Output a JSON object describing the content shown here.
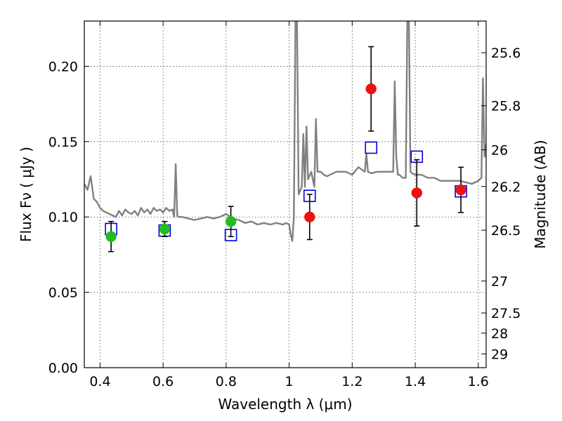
{
  "chart_data": {
    "type": "scatter",
    "title": "",
    "xlabel": "Wavelength  λ (μm)",
    "ylabel": "Flux  Fν  ( μJy )",
    "y2label": "Magnitude (AB)",
    "xlim": [
      0.35,
      1.625
    ],
    "ylim": [
      0.0,
      0.23
    ],
    "grid": true,
    "xticks": [
      {
        "value": 0.4,
        "label": "0.4"
      },
      {
        "value": 0.6,
        "label": "0.6"
      },
      {
        "value": 0.8,
        "label": "0.8"
      },
      {
        "value": 1.0,
        "label": "1"
      },
      {
        "value": 1.2,
        "label": "1.2"
      },
      {
        "value": 1.4,
        "label": "1.4"
      },
      {
        "value": 1.6,
        "label": "1.6"
      }
    ],
    "yticks": [
      {
        "value": 0.0,
        "label": "0.00"
      },
      {
        "value": 0.05,
        "label": "0.05"
      },
      {
        "value": 0.1,
        "label": "0.10"
      },
      {
        "value": 0.15,
        "label": "0.15"
      },
      {
        "value": 0.2,
        "label": "0.20"
      }
    ],
    "y2ticks": [
      {
        "value": 25.6,
        "label": "25.6"
      },
      {
        "value": 25.8,
        "label": "25.8"
      },
      {
        "value": 26.0,
        "label": "26"
      },
      {
        "value": 26.2,
        "label": "26.2"
      },
      {
        "value": 26.5,
        "label": "26.5"
      },
      {
        "value": 27.0,
        "label": "27"
      },
      {
        "value": 27.5,
        "label": "27.5"
      },
      {
        "value": 28.0,
        "label": "28"
      },
      {
        "value": 29.0,
        "label": "29"
      }
    ],
    "colors": {
      "model_spectrum": "#808080",
      "model_photometry": "#0000dd",
      "observed_optical": "#22bb22",
      "observed_nir": "#ee1111",
      "errorbar": "#000000"
    },
    "series": [
      {
        "marker": "line",
        "x": [
          0.35,
          0.36,
          0.37,
          0.375,
          0.38,
          0.39,
          0.4,
          0.41,
          0.42,
          0.43,
          0.44,
          0.45,
          0.46,
          0.47,
          0.48,
          0.49,
          0.5,
          0.51,
          0.52,
          0.53,
          0.54,
          0.55,
          0.56,
          0.57,
          0.58,
          0.59,
          0.6,
          0.61,
          0.62,
          0.63,
          0.635,
          0.64,
          0.645,
          0.65,
          0.66,
          0.68,
          0.7,
          0.72,
          0.74,
          0.76,
          0.78,
          0.8,
          0.82,
          0.84,
          0.86,
          0.88,
          0.9,
          0.92,
          0.94,
          0.96,
          0.98,
          0.99,
          1.0,
          1.005,
          1.01,
          1.015,
          1.02,
          1.025,
          1.03,
          1.04,
          1.045,
          1.05,
          1.055,
          1.06,
          1.07,
          1.08,
          1.085,
          1.09,
          1.1,
          1.11,
          1.12,
          1.15,
          1.18,
          1.2,
          1.22,
          1.24,
          1.245,
          1.25,
          1.26,
          1.28,
          1.3,
          1.32,
          1.33,
          1.335,
          1.34,
          1.345,
          1.35,
          1.36,
          1.37,
          1.375,
          1.38,
          1.385,
          1.39,
          1.4,
          1.42,
          1.44,
          1.46,
          1.48,
          1.5,
          1.52,
          1.54,
          1.56,
          1.58,
          1.6,
          1.61,
          1.615,
          1.62,
          1.625
        ],
        "y": [
          0.122,
          0.118,
          0.127,
          0.12,
          0.112,
          0.11,
          0.106,
          0.104,
          0.103,
          0.102,
          0.101,
          0.1,
          0.104,
          0.101,
          0.105,
          0.103,
          0.102,
          0.104,
          0.101,
          0.106,
          0.103,
          0.105,
          0.102,
          0.106,
          0.104,
          0.105,
          0.103,
          0.106,
          0.104,
          0.105,
          0.1,
          0.135,
          0.101,
          0.1,
          0.1,
          0.099,
          0.098,
          0.099,
          0.1,
          0.099,
          0.1,
          0.102,
          0.099,
          0.098,
          0.096,
          0.097,
          0.095,
          0.096,
          0.095,
          0.096,
          0.095,
          0.096,
          0.095,
          0.088,
          0.084,
          0.1,
          0.23,
          0.23,
          0.115,
          0.12,
          0.155,
          0.12,
          0.16,
          0.125,
          0.13,
          0.12,
          0.165,
          0.13,
          0.13,
          0.128,
          0.127,
          0.13,
          0.13,
          0.128,
          0.133,
          0.13,
          0.142,
          0.13,
          0.129,
          0.13,
          0.13,
          0.13,
          0.13,
          0.19,
          0.14,
          0.128,
          0.128,
          0.126,
          0.126,
          0.23,
          0.23,
          0.13,
          0.129,
          0.128,
          0.128,
          0.126,
          0.126,
          0.124,
          0.124,
          0.124,
          0.124,
          0.123,
          0.122,
          0.124,
          0.126,
          0.192,
          0.14,
          0.148
        ]
      },
      {
        "marker": "open-square",
        "x": [
          0.435,
          0.605,
          0.815,
          1.065,
          1.26,
          1.405,
          1.545
        ],
        "y": [
          0.092,
          0.091,
          0.088,
          0.114,
          0.146,
          0.14,
          0.117
        ]
      },
      {
        "marker": "filled-circle",
        "x": [
          0.435,
          0.605,
          0.815
        ],
        "y": [
          0.087,
          0.092,
          0.097
        ],
        "yerr": [
          0.01,
          0.005,
          0.01
        ]
      },
      {
        "marker": "filled-circle",
        "x": [
          1.065,
          1.26,
          1.405,
          1.545
        ],
        "y": [
          0.1,
          0.185,
          0.116,
          0.118
        ],
        "yerr": [
          0.015,
          0.028,
          0.022,
          0.015
        ]
      }
    ]
  }
}
